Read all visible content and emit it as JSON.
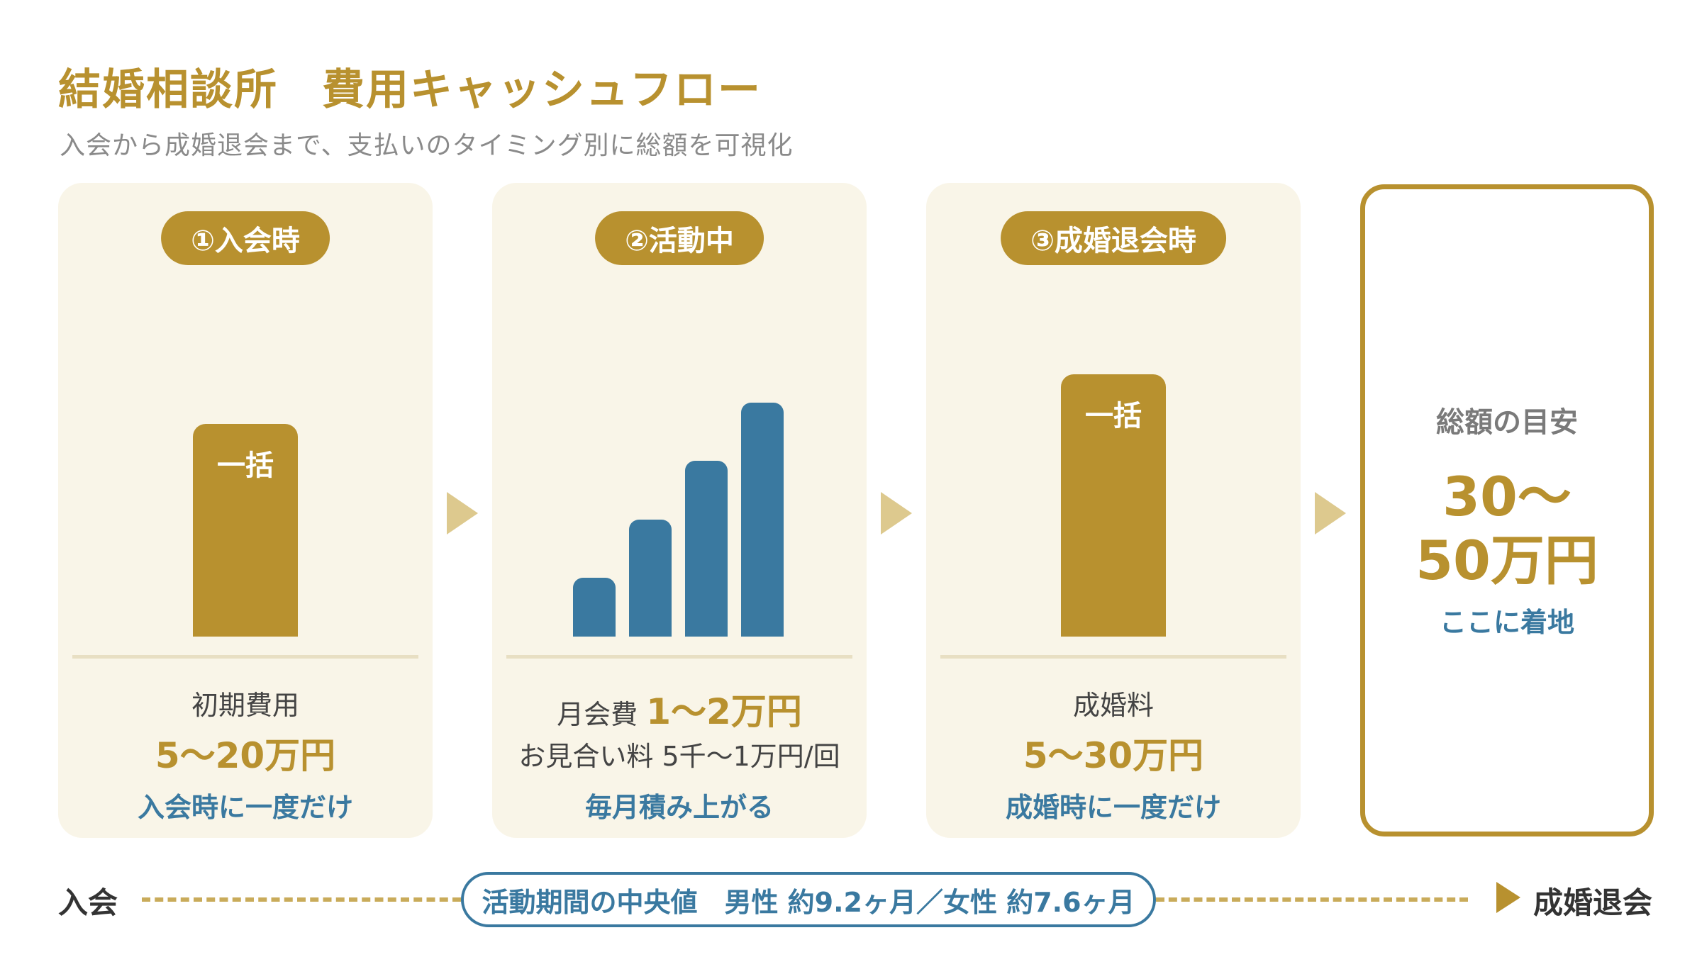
{
  "header": {
    "title": "結婚相談所　費用キャッシュフロー",
    "subtitle": "入会から成婚退会まで、支払いのタイミング別に総額を可視化"
  },
  "stages": [
    {
      "badge": "①入会時",
      "bar_label": "一括",
      "label": "初期費用",
      "amount": "5〜20万円",
      "note": "入会時に一度だけ"
    },
    {
      "badge": "②活動中",
      "bar_levels": [
        1,
        2,
        3,
        4
      ],
      "label": "月会費",
      "amount": "1〜2万円",
      "label2": "お見合い料 5千〜1万円/回",
      "note": "毎月積み上がる"
    },
    {
      "badge": "③成婚退会時",
      "bar_label": "一括",
      "label": "成婚料",
      "amount": "5〜30万円",
      "note": "成婚時に一度だけ"
    }
  ],
  "total": {
    "label": "総額の目安",
    "amount_line1": "30〜",
    "amount_line2": "50万円",
    "note": "ここに着地"
  },
  "timeline": {
    "start": "入会",
    "end": "成婚退会",
    "pill": "活動期間の中央値　男性 約9.2ヶ月／女性 約7.6ヶ月"
  },
  "colors": {
    "gold": "#b8912f",
    "blue": "#3a79a0",
    "card_bg": "#f9f5e8"
  }
}
